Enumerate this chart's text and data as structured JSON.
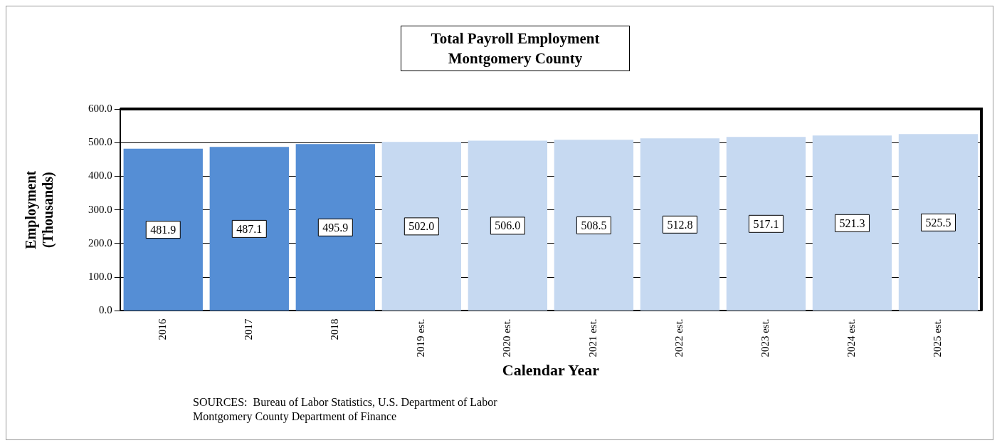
{
  "chart_data": {
    "type": "bar",
    "title": "Total Payroll Employment\nMontgomery County",
    "xlabel": "Calendar Year",
    "ylabel": "Employment\n(Thousands)",
    "categories": [
      "2016",
      "2017",
      "2018",
      "2019 est.",
      "2020 est.",
      "2021 est.",
      "2022 est.",
      "2023 est.",
      "2024 est.",
      "2025 est."
    ],
    "values": [
      481.9,
      487.1,
      495.9,
      502.0,
      506.0,
      508.5,
      512.8,
      517.1,
      521.3,
      525.5
    ],
    "colors": [
      "#558ed5",
      "#558ed5",
      "#558ed5",
      "#c6d9f1",
      "#c6d9f1",
      "#c6d9f1",
      "#c6d9f1",
      "#c6d9f1",
      "#c6d9f1",
      "#c6d9f1"
    ],
    "value_labels": [
      "481.9",
      "487.1",
      "495.9",
      "502.0",
      "506.0",
      "508.5",
      "512.8",
      "517.1",
      "521.3",
      "525.5"
    ],
    "ylim": [
      0,
      600
    ],
    "yticks": [
      {
        "value": 0,
        "label": "0.0"
      },
      {
        "value": 100,
        "label": "100.0"
      },
      {
        "value": 200,
        "label": "200.0"
      },
      {
        "value": 300,
        "label": "300.0"
      },
      {
        "value": 400,
        "label": "400.0"
      },
      {
        "value": 500,
        "label": "500.0"
      },
      {
        "value": 600,
        "label": "600.0"
      }
    ],
    "grid": "y",
    "legend": false,
    "annotations": [
      "SOURCES:  Bureau of Labor Statistics, U.S. Department of Labor\nMontgomery County Department of Finance"
    ]
  }
}
